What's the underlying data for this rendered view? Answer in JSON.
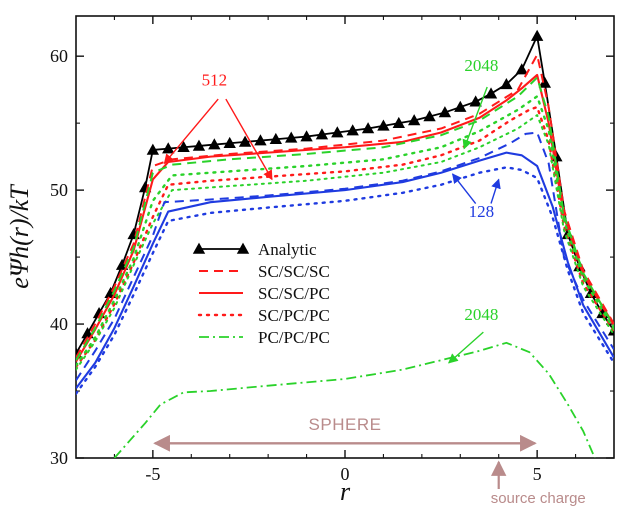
{
  "colors": {
    "analytic": "#000000",
    "red": "#ff1a1a",
    "blue": "#1f3be0",
    "green": "#2ad22a",
    "annotation_brown": "#b98b8b",
    "axis": "#111111"
  },
  "chart_data": {
    "type": "line",
    "xlabel": "r",
    "ylabel": "eΨh(r)/kT",
    "xlim": [
      -7,
      7
    ],
    "ylim": [
      30,
      63
    ],
    "x_ticks": [
      -5,
      0,
      5
    ],
    "y_ticks": [
      30,
      40,
      50,
      60
    ],
    "legend_placement": "center-left",
    "series": [
      {
        "name": "Analytic",
        "legend_label": "Analytic",
        "color": "#000000",
        "style": "solid-triangle",
        "points": [
          [
            -7.0,
            37.8
          ],
          [
            -6.7,
            39.3
          ],
          [
            -6.4,
            40.8
          ],
          [
            -6.1,
            42.3
          ],
          [
            -5.8,
            44.4
          ],
          [
            -5.5,
            46.7
          ],
          [
            -5.2,
            50.2
          ],
          [
            -5.0,
            53.0
          ],
          [
            -4.6,
            53.1
          ],
          [
            -4.2,
            53.2
          ],
          [
            -3.8,
            53.3
          ],
          [
            -3.4,
            53.4
          ],
          [
            -3.0,
            53.5
          ],
          [
            -2.6,
            53.6
          ],
          [
            -2.2,
            53.7
          ],
          [
            -1.8,
            53.8
          ],
          [
            -1.4,
            53.9
          ],
          [
            -1.0,
            54.0
          ],
          [
            -0.6,
            54.15
          ],
          [
            -0.2,
            54.3
          ],
          [
            0.2,
            54.45
          ],
          [
            0.6,
            54.6
          ],
          [
            1.0,
            54.8
          ],
          [
            1.4,
            55.0
          ],
          [
            1.8,
            55.2
          ],
          [
            2.2,
            55.5
          ],
          [
            2.6,
            55.8
          ],
          [
            3.0,
            56.2
          ],
          [
            3.4,
            56.6
          ],
          [
            3.8,
            57.2
          ],
          [
            4.2,
            57.9
          ],
          [
            4.6,
            59.0
          ],
          [
            5.0,
            61.5
          ],
          [
            5.2,
            58.0
          ],
          [
            5.5,
            52.5
          ],
          [
            5.8,
            46.7
          ],
          [
            6.1,
            44.3
          ],
          [
            6.4,
            42.3
          ],
          [
            6.7,
            40.8
          ],
          [
            7.0,
            39.5
          ]
        ],
        "marker_every": 1
      },
      {
        "name": "SC/SC/SC",
        "legend_label": "SC/SC/SC",
        "color": "#ff1a1a",
        "style": "dashed",
        "points": [
          [
            -7.0,
            37.5
          ],
          [
            -6.5,
            40.0
          ],
          [
            -6.0,
            42.8
          ],
          [
            -5.5,
            46.0
          ],
          [
            -5.0,
            51.8
          ],
          [
            -4.5,
            52.3
          ],
          [
            -3.0,
            52.7
          ],
          [
            -1.0,
            53.1
          ],
          [
            1.0,
            53.7
          ],
          [
            2.5,
            54.6
          ],
          [
            3.5,
            55.7
          ],
          [
            4.5,
            57.5
          ],
          [
            5.0,
            60.1
          ],
          [
            5.3,
            56.2
          ],
          [
            5.7,
            48.5
          ],
          [
            6.2,
            44.0
          ],
          [
            7.0,
            40.0
          ]
        ]
      },
      {
        "name": "SC/SC/PC",
        "legend_label": "SC/SC/PC",
        "color": "#ff1a1a",
        "style": "solid",
        "points": [
          [
            -7.0,
            37.2
          ],
          [
            -6.5,
            39.6
          ],
          [
            -6.0,
            42.2
          ],
          [
            -5.5,
            45.5
          ],
          [
            -5.0,
            50.8
          ],
          [
            -4.6,
            52.1
          ],
          [
            -3.5,
            52.5
          ],
          [
            -2.0,
            52.8
          ],
          [
            0.0,
            53.2
          ],
          [
            1.5,
            53.6
          ],
          [
            2.5,
            54.3
          ],
          [
            3.5,
            55.4
          ],
          [
            4.2,
            56.7
          ],
          [
            4.6,
            57.6
          ],
          [
            5.0,
            58.6
          ],
          [
            5.3,
            55.0
          ],
          [
            5.7,
            48.0
          ],
          [
            6.2,
            43.7
          ],
          [
            7.0,
            39.9
          ]
        ]
      },
      {
        "name": "SC/PC/PC",
        "legend_label": "SC/PC/PC",
        "color": "#ff1a1a",
        "style": "dotted",
        "points": [
          [
            -7.0,
            36.8
          ],
          [
            -6.5,
            38.8
          ],
          [
            -6.0,
            41.5
          ],
          [
            -5.5,
            44.6
          ],
          [
            -5.0,
            48.0
          ],
          [
            -4.6,
            50.4
          ],
          [
            -3.5,
            50.7
          ],
          [
            -2.0,
            51.0
          ],
          [
            0.0,
            51.4
          ],
          [
            1.5,
            51.9
          ],
          [
            2.5,
            52.6
          ],
          [
            3.5,
            53.7
          ],
          [
            4.3,
            55.2
          ],
          [
            4.8,
            56.0
          ],
          [
            5.0,
            56.2
          ],
          [
            5.3,
            53.7
          ],
          [
            5.7,
            47.3
          ],
          [
            6.2,
            43.0
          ],
          [
            7.0,
            39.5
          ]
        ]
      },
      {
        "name": "Green 2048 SC/SC/SC",
        "legend_label": "",
        "color": "#2ad22a",
        "style": "dashed",
        "points": [
          [
            -7.0,
            37.3
          ],
          [
            -6.5,
            39.7
          ],
          [
            -6.0,
            42.5
          ],
          [
            -5.5,
            45.7
          ],
          [
            -5.0,
            51.3
          ],
          [
            -4.5,
            51.9
          ],
          [
            -3.0,
            52.3
          ],
          [
            -1.0,
            52.7
          ],
          [
            1.0,
            53.2
          ],
          [
            2.5,
            54.1
          ],
          [
            3.5,
            55.2
          ],
          [
            4.5,
            57.0
          ],
          [
            5.0,
            58.4
          ],
          [
            5.3,
            55.5
          ],
          [
            5.7,
            48.1
          ],
          [
            6.2,
            43.8
          ],
          [
            7.0,
            39.8
          ]
        ]
      },
      {
        "name": "Green 2048 SC/SC/PC",
        "legend_label": "",
        "color": "#2ad22a",
        "style": "dotted",
        "points": [
          [
            -7.0,
            36.9
          ],
          [
            -6.5,
            39.0
          ],
          [
            -6.0,
            41.8
          ],
          [
            -5.5,
            44.9
          ],
          [
            -5.0,
            49.2
          ],
          [
            -4.5,
            51.1
          ],
          [
            -3.0,
            51.4
          ],
          [
            -1.0,
            51.8
          ],
          [
            1.0,
            52.3
          ],
          [
            2.5,
            53.2
          ],
          [
            3.5,
            54.4
          ],
          [
            4.5,
            56.0
          ],
          [
            5.0,
            57.0
          ],
          [
            5.3,
            54.5
          ],
          [
            5.7,
            47.7
          ],
          [
            6.2,
            43.4
          ],
          [
            7.0,
            39.6
          ]
        ]
      },
      {
        "name": "Green 2048 SC/PC/PC",
        "legend_label": "",
        "color": "#2ad22a",
        "style": "dotted-fine",
        "points": [
          [
            -7.0,
            36.6
          ],
          [
            -6.5,
            38.7
          ],
          [
            -6.0,
            41.2
          ],
          [
            -5.5,
            44.4
          ],
          [
            -5.0,
            47.5
          ],
          [
            -4.5,
            50.0
          ],
          [
            -3.0,
            50.3
          ],
          [
            -1.0,
            50.7
          ],
          [
            1.0,
            51.3
          ],
          [
            2.5,
            52.1
          ],
          [
            3.5,
            53.2
          ],
          [
            4.5,
            54.6
          ],
          [
            5.0,
            55.6
          ],
          [
            5.3,
            53.4
          ],
          [
            5.7,
            47.0
          ],
          [
            6.2,
            42.8
          ],
          [
            7.0,
            39.2
          ]
        ]
      },
      {
        "name": "Blue 128 dashed",
        "legend_label": "",
        "color": "#1f3be0",
        "style": "dashed",
        "points": [
          [
            -7.0,
            35.8
          ],
          [
            -6.5,
            38.0
          ],
          [
            -6.0,
            40.4
          ],
          [
            -5.5,
            43.5
          ],
          [
            -5.0,
            46.6
          ],
          [
            -4.7,
            49.1
          ],
          [
            -3.5,
            49.3
          ],
          [
            -2.0,
            49.6
          ],
          [
            0.0,
            50.1
          ],
          [
            1.5,
            50.7
          ],
          [
            2.5,
            51.4
          ],
          [
            3.5,
            52.4
          ],
          [
            4.3,
            53.5
          ],
          [
            4.7,
            54.2
          ],
          [
            5.0,
            54.3
          ],
          [
            5.3,
            52.0
          ],
          [
            5.7,
            45.0
          ],
          [
            6.2,
            41.8
          ],
          [
            7.0,
            38.1
          ]
        ]
      },
      {
        "name": "Blue 128 solid",
        "legend_label": "",
        "color": "#1f3be0",
        "style": "solid",
        "points": [
          [
            -7.0,
            35.2
          ],
          [
            -6.5,
            37.1
          ],
          [
            -6.0,
            39.7
          ],
          [
            -5.5,
            42.8
          ],
          [
            -5.0,
            46.0
          ],
          [
            -4.6,
            48.4
          ],
          [
            -3.5,
            49.1
          ],
          [
            -2.0,
            49.5
          ],
          [
            0.0,
            50.0
          ],
          [
            1.5,
            50.6
          ],
          [
            2.5,
            51.3
          ],
          [
            3.5,
            52.2
          ],
          [
            4.2,
            52.8
          ],
          [
            4.6,
            52.6
          ],
          [
            5.0,
            51.8
          ],
          [
            5.4,
            48.8
          ],
          [
            5.8,
            44.6
          ],
          [
            6.2,
            41.4
          ],
          [
            7.0,
            37.5
          ]
        ]
      },
      {
        "name": "Blue 128 dotted",
        "legend_label": "",
        "color": "#1f3be0",
        "style": "dotted",
        "points": [
          [
            -7.0,
            34.8
          ],
          [
            -6.5,
            36.8
          ],
          [
            -6.0,
            39.2
          ],
          [
            -5.5,
            42.2
          ],
          [
            -5.0,
            45.3
          ],
          [
            -4.6,
            47.7
          ],
          [
            -3.5,
            48.3
          ],
          [
            -2.0,
            48.7
          ],
          [
            0.0,
            49.2
          ],
          [
            1.5,
            49.8
          ],
          [
            2.5,
            50.4
          ],
          [
            3.5,
            51.3
          ],
          [
            4.2,
            51.7
          ],
          [
            4.6,
            51.5
          ],
          [
            5.0,
            50.9
          ],
          [
            5.4,
            48.0
          ],
          [
            5.8,
            44.0
          ],
          [
            6.2,
            40.8
          ],
          [
            7.0,
            37.1
          ]
        ]
      },
      {
        "name": "PC/PC/PC",
        "legend_label": "PC/PC/PC",
        "color": "#2ad22a",
        "style": "dashdot",
        "points": [
          [
            -6.0,
            30.0
          ],
          [
            -5.6,
            31.3
          ],
          [
            -5.2,
            32.6
          ],
          [
            -4.8,
            34.0
          ],
          [
            -4.2,
            34.9
          ],
          [
            -3.5,
            35.0
          ],
          [
            -2.0,
            35.4
          ],
          [
            0.0,
            35.9
          ],
          [
            1.5,
            36.6
          ],
          [
            2.5,
            37.3
          ],
          [
            3.5,
            38.0
          ],
          [
            4.2,
            38.6
          ],
          [
            4.8,
            37.9
          ],
          [
            5.3,
            36.3
          ],
          [
            5.8,
            34.0
          ],
          [
            6.2,
            32.0
          ],
          [
            6.5,
            30.0
          ]
        ]
      }
    ],
    "annotations": [
      {
        "text": "512",
        "color": "#ff1a1a",
        "anchor_x": -3.4,
        "anchor_y": 57.8,
        "arrows": [
          {
            "from": [
              -3.3,
              56.8
            ],
            "to": [
              -4.7,
              52.0
            ]
          },
          {
            "from": [
              -3.1,
              56.8
            ],
            "to": [
              -1.9,
              50.8
            ]
          }
        ]
      },
      {
        "text": "2048",
        "color": "#2ad22a",
        "anchor_x": 3.55,
        "anchor_y": 58.9,
        "arrows": [
          {
            "from": [
              3.7,
              57.7
            ],
            "to": [
              3.1,
              53.1
            ]
          }
        ]
      },
      {
        "text": "128",
        "color": "#1f3be0",
        "anchor_x": 3.55,
        "anchor_y": 48.0,
        "arrows": [
          {
            "from": [
              3.4,
              49.0
            ],
            "to": [
              2.8,
              51.2
            ]
          },
          {
            "from": [
              3.8,
              49.0
            ],
            "to": [
              4.0,
              50.8
            ]
          }
        ]
      },
      {
        "text": "2048",
        "color": "#2ad22a",
        "anchor_x": 3.55,
        "anchor_y": 40.3,
        "arrows": [
          {
            "from": [
              3.6,
              39.4
            ],
            "to": [
              2.7,
              37.1
            ]
          }
        ]
      }
    ],
    "sphere": {
      "label": "SPHERE",
      "x_start": -5.0,
      "x_end": 5.0,
      "y": 31.1,
      "label_y": 32.1,
      "color": "#b98b8b"
    },
    "source_charge": {
      "label": "source charge",
      "x": 4.0,
      "color": "#b98b8b"
    },
    "legend": {
      "entries": [
        {
          "label": "Analytic",
          "color": "#000000",
          "style": "solid-triangle"
        },
        {
          "label": "SC/SC/SC",
          "color": "#ff1a1a",
          "style": "dashed"
        },
        {
          "label": "SC/SC/PC",
          "color": "#ff1a1a",
          "style": "solid"
        },
        {
          "label": "SC/PC/PC",
          "color": "#ff1a1a",
          "style": "dotted"
        },
        {
          "label": "PC/PC/PC",
          "color": "#2ad22a",
          "style": "dashdot"
        }
      ]
    }
  }
}
